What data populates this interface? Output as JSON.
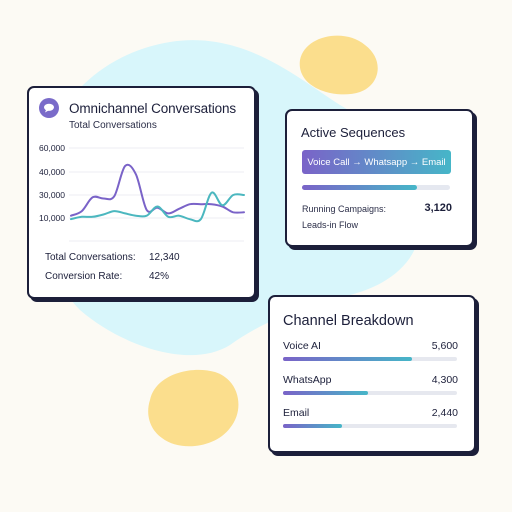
{
  "omnichannel": {
    "title": "Omnichannel Conversations",
    "subtitle": "Total Conversations",
    "stats": [
      {
        "label": "Total Conversations:",
        "value": "12,340"
      },
      {
        "label": "Conversion Rate:",
        "value": "42%"
      }
    ]
  },
  "chart_data": {
    "type": "line",
    "title": "",
    "xlabel": "",
    "ylabel": "",
    "ylim": [
      5000,
      65000
    ],
    "yticks": [
      "60,000",
      "40,000",
      "30,000",
      "10,000"
    ],
    "grid": true,
    "x": [
      0,
      1,
      2,
      3,
      4,
      5,
      6,
      7,
      8,
      9,
      10,
      11,
      12,
      13,
      14,
      15,
      16
    ],
    "series": [
      {
        "color": "#7a63c8",
        "values": [
          12000,
          16000,
          28000,
          27000,
          29000,
          45000,
          39000,
          17000,
          19000,
          14000,
          18000,
          22000,
          22000,
          22000,
          20000,
          15000,
          15000
        ]
      },
      {
        "color": "#4bb7bf",
        "values": [
          9000,
          11000,
          11000,
          13000,
          16000,
          14000,
          12000,
          12000,
          20000,
          11000,
          12000,
          9000,
          9000,
          31000,
          21000,
          30000,
          30000
        ]
      }
    ]
  },
  "sequences": {
    "title": "Active Sequences",
    "flow_label": "Voice Call → Whatsapp → Email",
    "progress": 0.78,
    "campaigns_label": "Running Campaigns:",
    "campaigns_value": "3,120",
    "leads_label": "Leads-in Flow"
  },
  "channels": {
    "title": "Channel Breakdown",
    "items": [
      {
        "name": "Voice AI",
        "value": "5,600",
        "share": 0.74
      },
      {
        "name": "WhatsApp",
        "value": "4,300",
        "share": 0.49
      },
      {
        "name": "Email",
        "value": "2,440",
        "share": 0.34
      }
    ]
  },
  "colors": {
    "accent_purple": "#7a63c8",
    "accent_teal": "#46b6c8",
    "blob_cyan": "#d8f6fb",
    "blob_yellow": "#fbde8d",
    "ink": "#1c1f3a"
  }
}
